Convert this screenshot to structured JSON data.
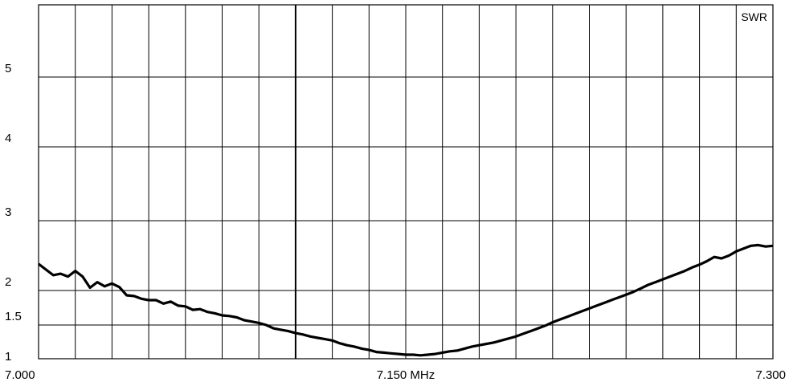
{
  "chart_data": {
    "type": "line",
    "title": "",
    "xlabel": "",
    "ylabel": "",
    "series_label": "SWR",
    "xlim": [
      7.0,
      7.3
    ],
    "ylim": [
      1,
      6
    ],
    "x_ticks": [
      {
        "value": 7.0,
        "label": "7.000"
      },
      {
        "value": 7.15,
        "label": "7.150 MHz"
      },
      {
        "value": 7.3,
        "label": "7.300"
      }
    ],
    "y_ticks": [
      {
        "value": 1,
        "label": "1"
      },
      {
        "value": 1.5,
        "label": "1.5"
      },
      {
        "value": 2,
        "label": "2"
      },
      {
        "value": 3,
        "label": "3"
      },
      {
        "value": 4,
        "label": "4"
      },
      {
        "value": 5,
        "label": "5"
      }
    ],
    "grid": true,
    "x_grid_divisions": 20,
    "y_grid_values": [
      1,
      1.5,
      2,
      3,
      4,
      5,
      6
    ],
    "marker_x": 7.105,
    "colors": {
      "line": "#000000",
      "grid": "#000000",
      "background": "#ffffff"
    },
    "series": [
      {
        "name": "SWR",
        "points": [
          [
            7.0,
            2.38
          ],
          [
            7.003,
            2.3
          ],
          [
            7.006,
            2.22
          ],
          [
            7.009,
            2.24
          ],
          [
            7.012,
            2.2
          ],
          [
            7.015,
            2.28
          ],
          [
            7.018,
            2.2
          ],
          [
            7.021,
            2.04
          ],
          [
            7.024,
            2.12
          ],
          [
            7.027,
            2.06
          ],
          [
            7.03,
            2.1
          ],
          [
            7.033,
            2.05
          ],
          [
            7.036,
            1.93
          ],
          [
            7.039,
            1.92
          ],
          [
            7.042,
            1.88
          ],
          [
            7.045,
            1.86
          ],
          [
            7.048,
            1.86
          ],
          [
            7.051,
            1.81
          ],
          [
            7.054,
            1.84
          ],
          [
            7.057,
            1.78
          ],
          [
            7.06,
            1.77
          ],
          [
            7.063,
            1.72
          ],
          [
            7.066,
            1.73
          ],
          [
            7.069,
            1.69
          ],
          [
            7.072,
            1.67
          ],
          [
            7.075,
            1.64
          ],
          [
            7.078,
            1.63
          ],
          [
            7.081,
            1.61
          ],
          [
            7.084,
            1.57
          ],
          [
            7.087,
            1.55
          ],
          [
            7.09,
            1.53
          ],
          [
            7.093,
            1.5
          ],
          [
            7.096,
            1.45
          ],
          [
            7.099,
            1.43
          ],
          [
            7.102,
            1.41
          ],
          [
            7.105,
            1.38
          ],
          [
            7.108,
            1.36
          ],
          [
            7.111,
            1.33
          ],
          [
            7.114,
            1.31
          ],
          [
            7.117,
            1.29
          ],
          [
            7.12,
            1.27
          ],
          [
            7.123,
            1.23
          ],
          [
            7.126,
            1.2
          ],
          [
            7.129,
            1.18
          ],
          [
            7.132,
            1.15
          ],
          [
            7.135,
            1.13
          ],
          [
            7.138,
            1.1
          ],
          [
            7.141,
            1.09
          ],
          [
            7.144,
            1.08
          ],
          [
            7.147,
            1.07
          ],
          [
            7.15,
            1.06
          ],
          [
            7.153,
            1.06
          ],
          [
            7.156,
            1.05
          ],
          [
            7.159,
            1.06
          ],
          [
            7.162,
            1.07
          ],
          [
            7.165,
            1.09
          ],
          [
            7.168,
            1.11
          ],
          [
            7.171,
            1.12
          ],
          [
            7.174,
            1.15
          ],
          [
            7.177,
            1.18
          ],
          [
            7.18,
            1.2
          ],
          [
            7.183,
            1.22
          ],
          [
            7.186,
            1.24
          ],
          [
            7.189,
            1.27
          ],
          [
            7.192,
            1.3
          ],
          [
            7.195,
            1.33
          ],
          [
            7.198,
            1.37
          ],
          [
            7.201,
            1.41
          ],
          [
            7.204,
            1.45
          ],
          [
            7.207,
            1.49
          ],
          [
            7.21,
            1.54
          ],
          [
            7.213,
            1.58
          ],
          [
            7.216,
            1.62
          ],
          [
            7.219,
            1.66
          ],
          [
            7.222,
            1.7
          ],
          [
            7.225,
            1.74
          ],
          [
            7.228,
            1.78
          ],
          [
            7.231,
            1.82
          ],
          [
            7.234,
            1.86
          ],
          [
            7.237,
            1.9
          ],
          [
            7.24,
            1.94
          ],
          [
            7.243,
            1.98
          ],
          [
            7.246,
            2.03
          ],
          [
            7.249,
            2.08
          ],
          [
            7.252,
            2.12
          ],
          [
            7.255,
            2.16
          ],
          [
            7.258,
            2.2
          ],
          [
            7.261,
            2.24
          ],
          [
            7.264,
            2.28
          ],
          [
            7.267,
            2.33
          ],
          [
            7.27,
            2.37
          ],
          [
            7.273,
            2.42
          ],
          [
            7.276,
            2.48
          ],
          [
            7.279,
            2.46
          ],
          [
            7.282,
            2.5
          ],
          [
            7.285,
            2.56
          ],
          [
            7.288,
            2.6
          ],
          [
            7.291,
            2.64
          ],
          [
            7.294,
            2.65
          ],
          [
            7.297,
            2.63
          ],
          [
            7.3,
            2.64
          ]
        ]
      }
    ]
  }
}
